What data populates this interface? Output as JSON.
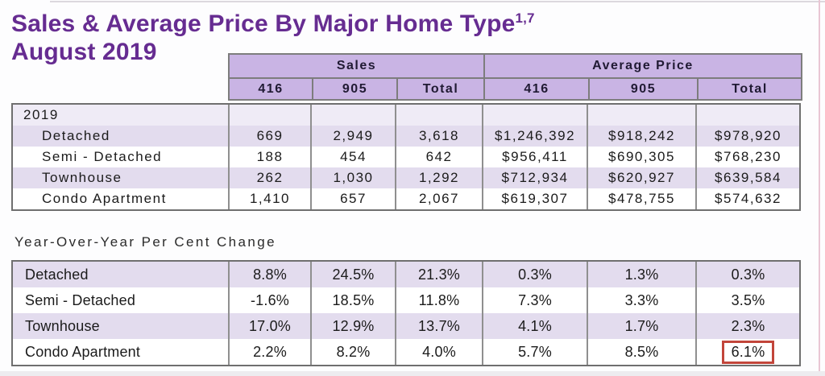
{
  "header": {
    "title": "Sales & Average Price By Major Home Type",
    "footnote_superscript": "1,7",
    "subtitle": "August 2019"
  },
  "section2_label": "Year-Over-Year Per Cent Change",
  "colors": {
    "title_purple": "#662C91",
    "header_cell_bg": "#C9B4E4",
    "row_stripe_bg": "#E3DCEE",
    "year_row_bg": "#EFEBF6",
    "grid_border_gray": "#8F8F8F",
    "highlight_red": "#C2453A"
  },
  "table1": {
    "group_headers": [
      "Sales",
      "Average Price"
    ],
    "col_headers": [
      "416",
      "905",
      "Total",
      "416",
      "905",
      "Total"
    ],
    "year_label": "2019",
    "rows": [
      {
        "label": "Detached",
        "cells": [
          "669",
          "2,949",
          "3,618",
          "$1,246,392",
          "$918,242",
          "$978,920"
        ]
      },
      {
        "label": "Semi - Detached",
        "cells": [
          "188",
          "454",
          "642",
          "$956,411",
          "$690,305",
          "$768,230"
        ]
      },
      {
        "label": "Townhouse",
        "cells": [
          "262",
          "1,030",
          "1,292",
          "$712,934",
          "$620,927",
          "$639,584"
        ]
      },
      {
        "label": "Condo Apartment",
        "cells": [
          "1,410",
          "657",
          "2,067",
          "$619,307",
          "$478,755",
          "$574,632"
        ]
      }
    ]
  },
  "table2": {
    "rows": [
      {
        "label": "Detached",
        "cells": [
          "8.8%",
          "24.5%",
          "21.3%",
          "0.3%",
          "1.3%",
          "0.3%"
        ]
      },
      {
        "label": "Semi - Detached",
        "cells": [
          "-1.6%",
          "18.5%",
          "11.8%",
          "7.3%",
          "3.3%",
          "3.5%"
        ]
      },
      {
        "label": "Townhouse",
        "cells": [
          "17.0%",
          "12.9%",
          "13.7%",
          "4.1%",
          "1.7%",
          "2.3%"
        ]
      },
      {
        "label": "Condo Apartment",
        "cells": [
          "2.2%",
          "8.2%",
          "4.0%",
          "5.7%",
          "8.5%",
          "6.1%"
        ],
        "highlighted_cell_index": 5
      }
    ]
  }
}
